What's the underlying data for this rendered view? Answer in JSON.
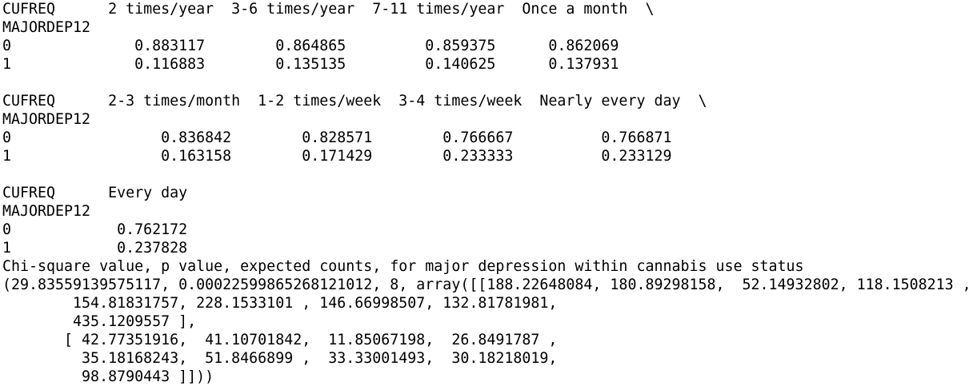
{
  "console_output": {
    "lines": [
      "CUFREQ      2 times/year  3-6 times/year  7-11 times/year  Once a month  \\",
      "MAJORDEP12",
      "0              0.883117        0.864865         0.859375      0.862069",
      "1              0.116883        0.135135         0.140625      0.137931",
      "",
      "CUFREQ      2-3 times/month  1-2 times/week  3-4 times/week  Nearly every day  \\",
      "MAJORDEP12",
      "0                 0.836842        0.828571        0.766667          0.766871",
      "1                 0.163158        0.171429        0.233333          0.233129",
      "",
      "CUFREQ      Every day",
      "MAJORDEP12",
      "0            0.762172",
      "1            0.237828",
      "Chi-square value, p value, expected counts, for major depression within cannabis use status",
      "(29.83559139575117, 0.0002259986526812101​2, 8, array([[188.22648084, 180.89298158,  52.14932802, 118.1508213 ,",
      "        154.81831757, 228.1533101 , 146.66998507, 132.81781981,",
      "        435.1209557 ],",
      "       [ 42.77351916,  41.10701842,  11.85067198,  26.8491787 ,",
      "         35.18168243,  51.8466899 ,  33.33001493,  30.18218019,",
      "         98.8790443 ]]))"
    ]
  }
}
